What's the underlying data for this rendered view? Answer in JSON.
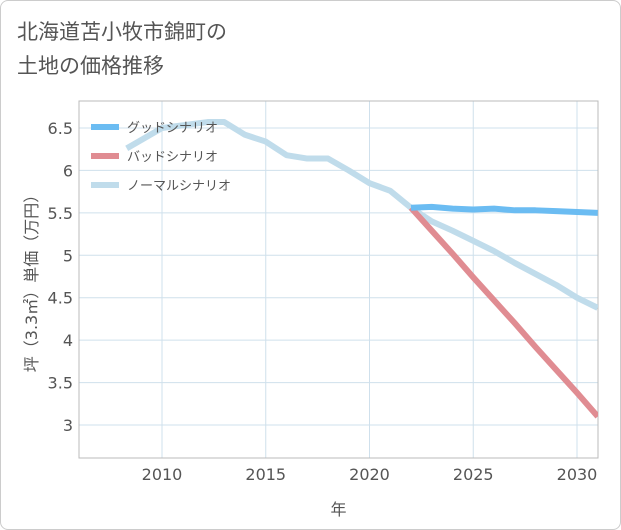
{
  "title_line1": "北海道苫小牧市錦町の",
  "title_line2": "土地の価格推移",
  "chart_data": {
    "type": "line",
    "title": "北海道苫小牧市錦町の土地の価格推移",
    "xlabel": "年",
    "ylabel": "坪（3.3㎡）単価（万円）",
    "xlim": [
      2006,
      2031
    ],
    "ylim": [
      2.6,
      6.85
    ],
    "xticks": [
      2010,
      2015,
      2020,
      2025,
      2030
    ],
    "yticks": [
      3,
      3.5,
      4,
      4.5,
      5,
      5.5,
      6,
      6.5
    ],
    "ytick_labels": [
      "3",
      "3.5",
      "4",
      "4.5",
      "5",
      "5.5",
      "6",
      "6.5"
    ],
    "grid": true,
    "legend_position": "top-left",
    "series": [
      {
        "name": "グッドシナリオ",
        "color": "#6bbcf2",
        "x": [
          2022,
          2023,
          2024,
          2025,
          2026,
          2027,
          2028,
          2029,
          2030,
          2031
        ],
        "values": [
          5.56,
          5.57,
          5.55,
          5.54,
          5.55,
          5.53,
          5.53,
          5.52,
          5.51,
          5.5
        ]
      },
      {
        "name": "バッドシナリオ",
        "color": "#e08c92",
        "x": [
          2022,
          2023,
          2024,
          2025,
          2026,
          2027,
          2028,
          2029,
          2030,
          2031
        ],
        "values": [
          5.56,
          5.29,
          5.02,
          4.74,
          4.47,
          4.2,
          3.92,
          3.65,
          3.38,
          3.1
        ]
      },
      {
        "name": "ノーマルシナリオ",
        "color": "#c0dceb",
        "x": [
          2008.3,
          2010,
          2012.2,
          2013,
          2014,
          2015,
          2016,
          2017,
          2018,
          2019,
          2020,
          2021,
          2022,
          2023,
          2024,
          2025,
          2026,
          2027,
          2028,
          2029,
          2030,
          2031
        ],
        "values": [
          6.26,
          6.5,
          6.57,
          6.57,
          6.42,
          6.34,
          6.18,
          6.14,
          6.14,
          6.0,
          5.85,
          5.76,
          5.56,
          5.4,
          5.29,
          5.17,
          5.05,
          4.91,
          4.78,
          4.65,
          4.5,
          4.38
        ]
      }
    ]
  }
}
